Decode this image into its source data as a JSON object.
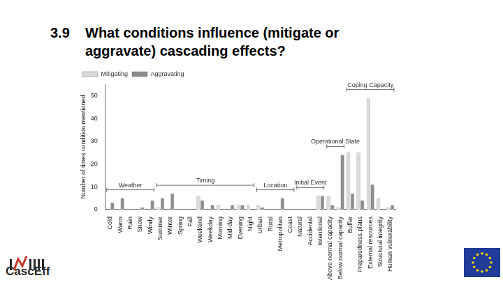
{
  "slide": {
    "number": "3.9",
    "title": "What conditions influence (mitigate or aggravate) cascading effects?",
    "logo_text": "CascEff"
  },
  "chart_data": {
    "type": "bar",
    "categories": [
      "Cold",
      "Warm",
      "Rain",
      "Snow",
      "Windy",
      "Summer",
      "Winter",
      "Spring",
      "Fall",
      "Weekend",
      "Weekday",
      "Morning",
      "Mid-day",
      "Evening",
      "Night",
      "Urban",
      "Rural",
      "Metropolitan",
      "Coast",
      "Natural",
      "Accidental",
      "Intentional",
      "Above normal capacity",
      "Below normal capacity",
      "Buffer",
      "Preparedness plans",
      "External resources",
      "Structural integrity",
      "Human vulnerability"
    ],
    "series": [
      {
        "name": "Mitigating",
        "color": "#dadada",
        "values": [
          0,
          0,
          0,
          0,
          0,
          1,
          0,
          0,
          0,
          6,
          0,
          2,
          0,
          2,
          2,
          2,
          0,
          0,
          0,
          0,
          0,
          6,
          6,
          1,
          25,
          25,
          49,
          5,
          1
        ]
      },
      {
        "name": "Aggravating",
        "color": "#8c8c8c",
        "values": [
          3,
          5,
          0,
          1,
          4,
          5,
          7,
          0,
          0,
          4,
          2,
          0,
          2,
          2,
          0,
          1,
          0,
          5,
          0,
          0,
          0,
          6,
          2,
          24,
          7,
          4,
          11,
          0,
          2
        ]
      }
    ],
    "y_label": "Number of times condition mentioned",
    "ylim": [
      0,
      55
    ],
    "yticks": [
      0,
      10,
      20,
      30,
      40,
      50
    ],
    "grid": false,
    "legend": "upper left",
    "groups": [
      {
        "label": "Weather",
        "first": "Cold",
        "last": "Windy"
      },
      {
        "label": "Timing",
        "first": "Summer",
        "last": "Night"
      },
      {
        "label": "Location",
        "first": "Urban",
        "last": "Coast"
      },
      {
        "label": "Initial Event",
        "first": "Natural",
        "last": "Intentional"
      },
      {
        "label": "Operational State",
        "first": "Above normal capacity",
        "last": "Below normal capacity"
      },
      {
        "label": "Coping Capacity",
        "first": "Buffer",
        "last": "Human vulnerability"
      }
    ]
  }
}
